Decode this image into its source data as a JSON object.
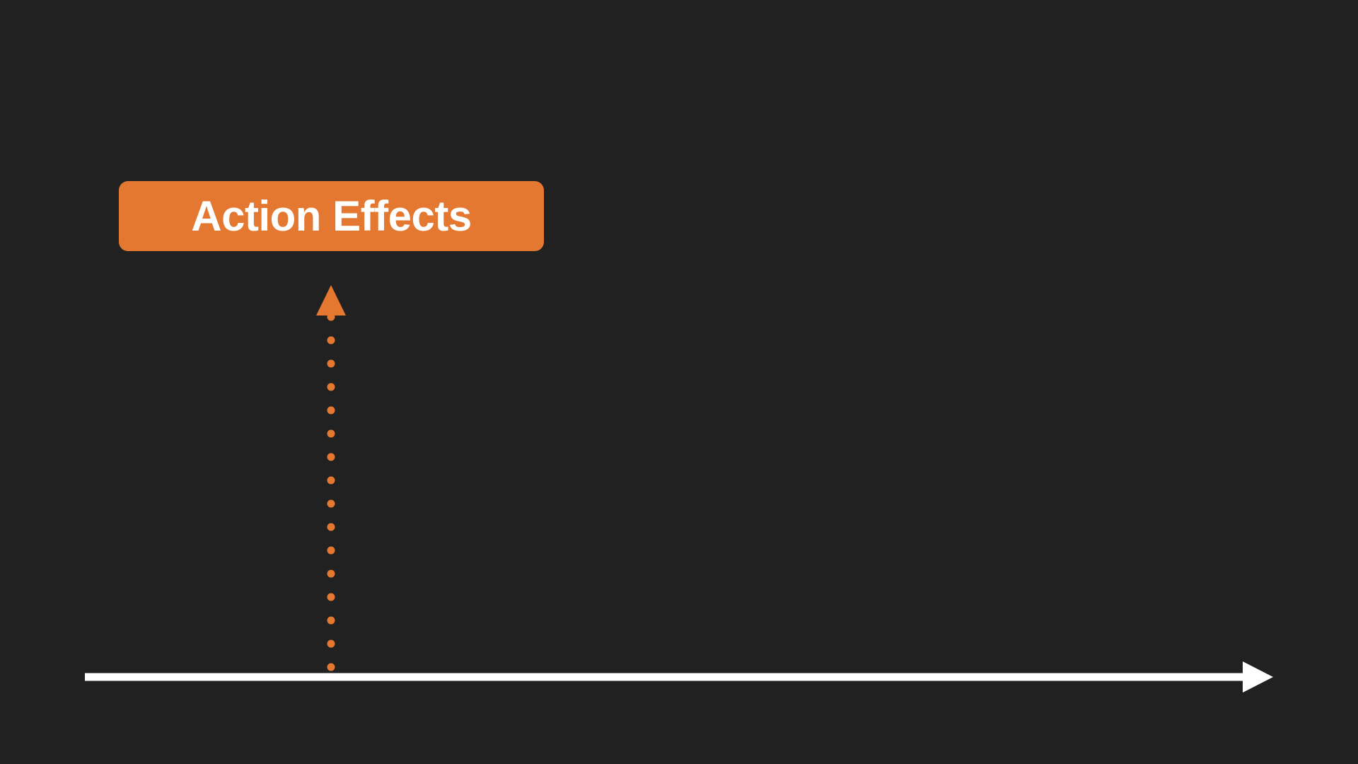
{
  "slide": {
    "box_label": "Action Effects"
  },
  "colors": {
    "background": "#212121",
    "accent": "#E47831",
    "axis": "#FFFFFF"
  }
}
